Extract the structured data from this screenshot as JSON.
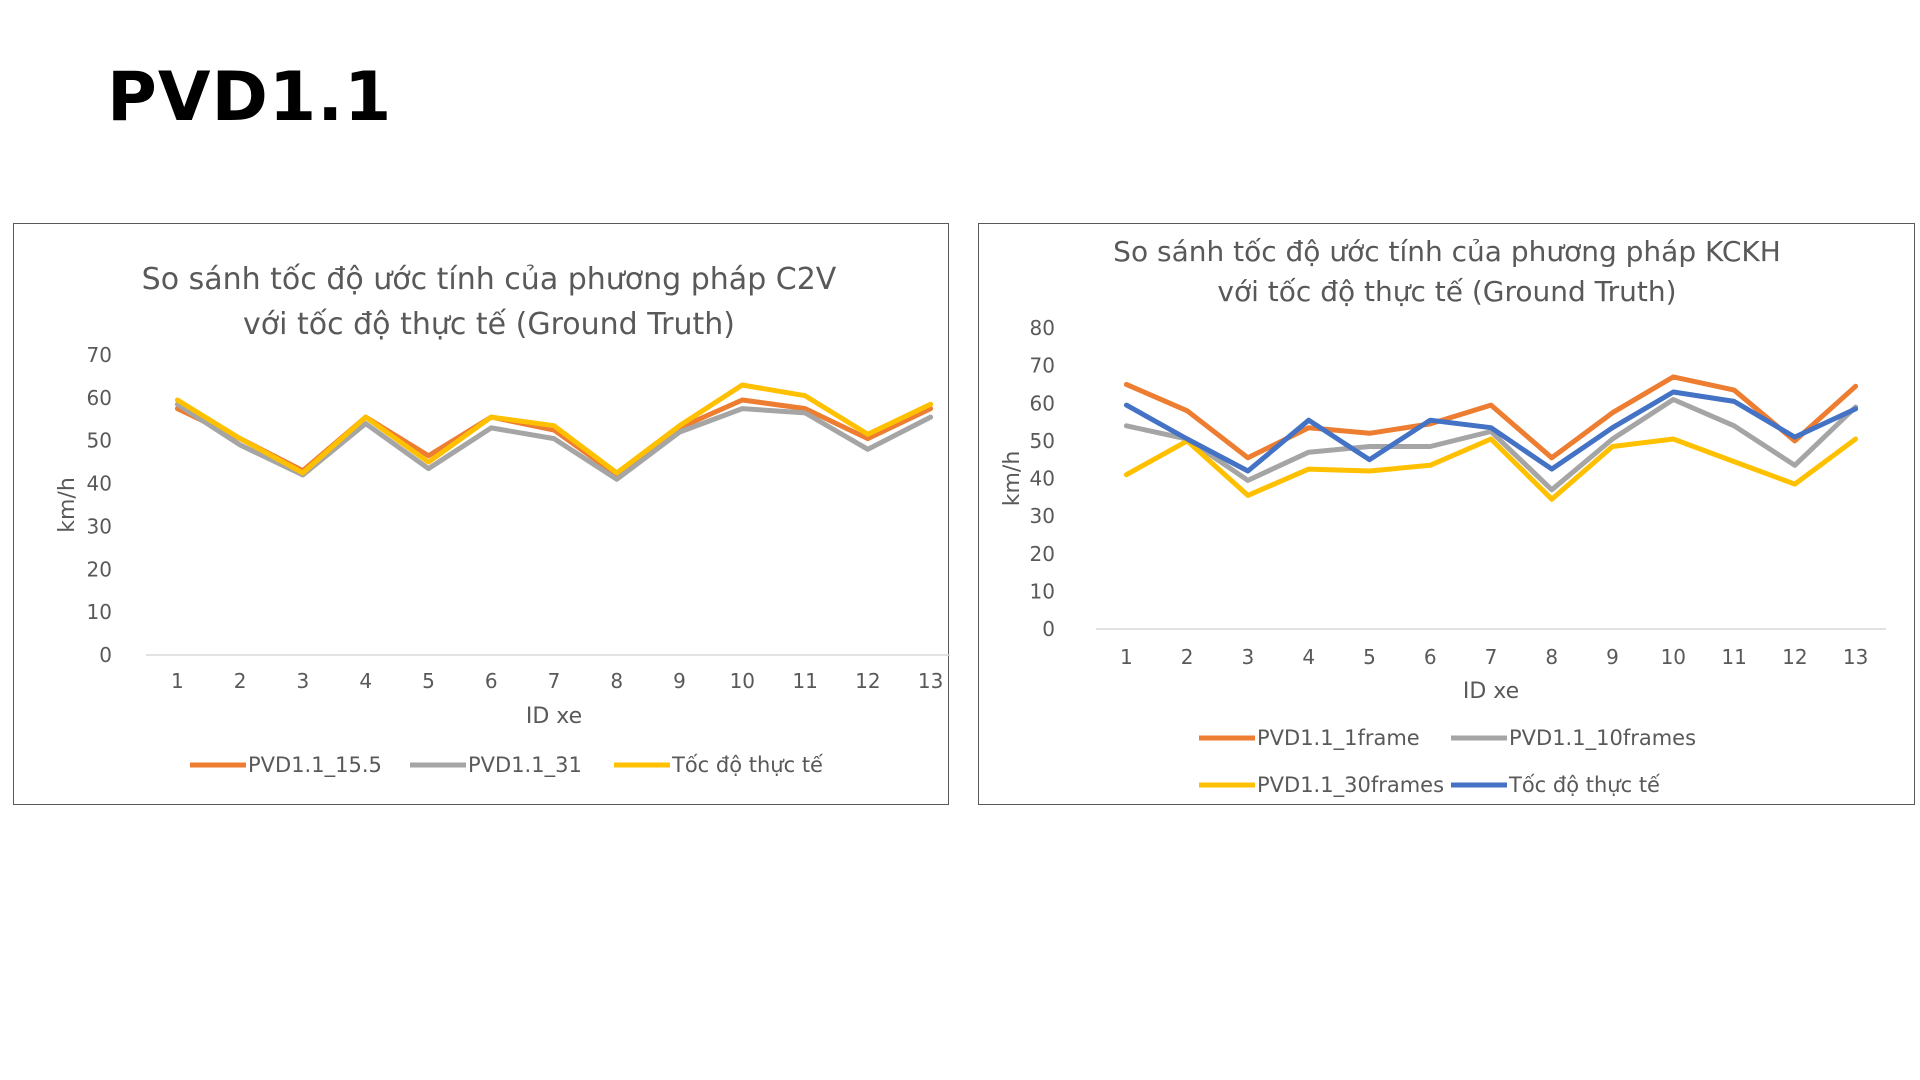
{
  "slide": {
    "title": "PVD1.1"
  },
  "colors": {
    "orange": "#ED7D31",
    "gray": "#A5A5A5",
    "yellow": "#FFC000",
    "blue": "#4472C4",
    "axis": "#D9D9D9",
    "text": "#595959"
  },
  "chart_data": [
    {
      "type": "line",
      "title": "So sánh tốc độ ước tính của phương pháp C2V",
      "subtitle": "với tốc độ thực tế (Ground Truth)",
      "xlabel": "ID xe",
      "ylabel": "km/h",
      "ylim": [
        0,
        70
      ],
      "yticks": [
        "0",
        "10",
        "20",
        "30",
        "40",
        "50",
        "60",
        "70"
      ],
      "grid": false,
      "legend": "bottom",
      "categories": [
        "1",
        "2",
        "3",
        "4",
        "5",
        "6",
        "7",
        "8",
        "9",
        "10",
        "11",
        "12",
        "13"
      ],
      "series": [
        {
          "name": "PVD1.1_15.5",
          "color": "#ED7D31",
          "values": [
            57.5,
            50.5,
            43,
            55.5,
            46.5,
            55.5,
            52.5,
            42,
            53,
            59.5,
            57.5,
            50.5,
            57.5
          ]
        },
        {
          "name": "PVD1.1_31",
          "color": "#A5A5A5",
          "values": [
            58.5,
            49,
            42,
            54,
            43.5,
            53,
            50.5,
            41,
            52,
            57.5,
            56.5,
            48,
            55.5
          ]
        },
        {
          "name": "Tốc độ thực tế",
          "color": "#FFC000",
          "values": [
            59.5,
            50.5,
            42.5,
            55.5,
            45,
            55.5,
            53.5,
            42.5,
            53.5,
            63,
            60.5,
            51.5,
            58.5
          ]
        }
      ]
    },
    {
      "type": "line",
      "title": "So sánh tốc độ ước tính của phương pháp KCKH",
      "subtitle": "với tốc độ thực tế (Ground Truth)",
      "xlabel": "ID xe",
      "ylabel": "km/h",
      "ylim": [
        0,
        80
      ],
      "yticks": [
        "0",
        "10",
        "20",
        "30",
        "40",
        "50",
        "60",
        "70",
        "80"
      ],
      "grid": false,
      "legend": "bottom",
      "categories": [
        "1",
        "2",
        "3",
        "4",
        "5",
        "6",
        "7",
        "8",
        "9",
        "10",
        "11",
        "12",
        "13"
      ],
      "series": [
        {
          "name": "PVD1.1_1frame",
          "color": "#ED7D31",
          "values": [
            65,
            58,
            45.5,
            53.5,
            52,
            54.5,
            59.5,
            45.5,
            57.5,
            67,
            63.5,
            50,
            64.5
          ]
        },
        {
          "name": "PVD1.1_10frames",
          "color": "#A5A5A5",
          "values": [
            54,
            50.5,
            39.5,
            47,
            48.5,
            48.5,
            52.5,
            37,
            50.5,
            61,
            54,
            43.5,
            59
          ]
        },
        {
          "name": "PVD1.1_30frames",
          "color": "#FFC000",
          "values": [
            41,
            50,
            35.5,
            42.5,
            42,
            43.5,
            50.5,
            34.5,
            48.5,
            50.5,
            44.5,
            38.5,
            50.5
          ]
        },
        {
          "name": "Tốc độ thực tế",
          "color": "#4472C4",
          "values": [
            59.5,
            50.5,
            42,
            55.5,
            45,
            55.5,
            53.5,
            42.5,
            53.5,
            63,
            60.5,
            51,
            58.5
          ]
        }
      ]
    }
  ]
}
